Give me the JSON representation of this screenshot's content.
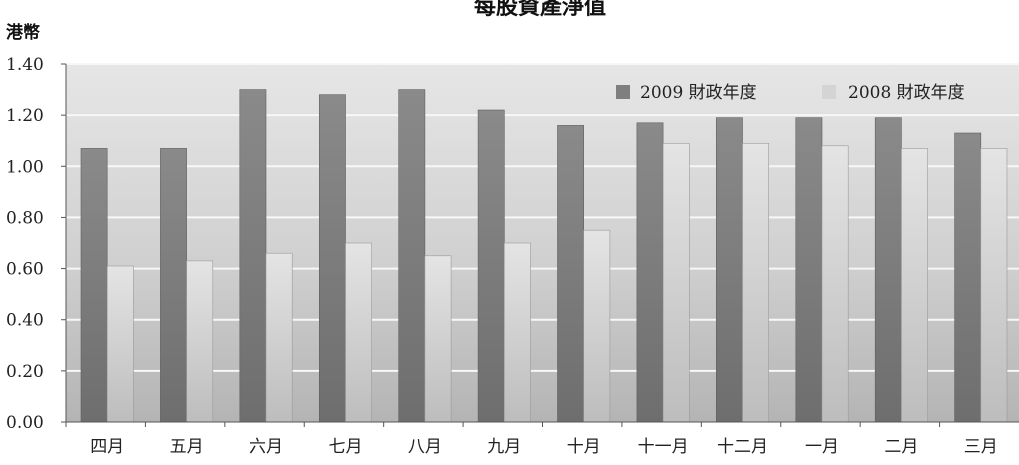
{
  "chart_data": {
    "type": "bar",
    "title": "每股資產淨值",
    "ylabel": "港幣",
    "xlabel": "",
    "categories": [
      "四月",
      "五月",
      "六月",
      "七月",
      "八月",
      "九月",
      "十月",
      "十一月",
      "十二月",
      "一月",
      "二月",
      "三月"
    ],
    "series": [
      {
        "name": "2009 財政年度",
        "color": "#7f7f7f",
        "values": [
          1.07,
          1.07,
          1.3,
          1.28,
          1.3,
          1.22,
          1.16,
          1.17,
          1.19,
          1.19,
          1.19,
          1.13
        ]
      },
      {
        "name": "2008 財政年度",
        "color": "#d4d4d4",
        "values": [
          0.61,
          0.63,
          0.66,
          0.7,
          0.65,
          0.7,
          0.75,
          1.09,
          1.09,
          1.08,
          1.07,
          1.07
        ]
      }
    ],
    "ylim": [
      0,
      1.4
    ],
    "yticks": [
      "0.00",
      "0.20",
      "0.40",
      "0.60",
      "0.80",
      "1.00",
      "1.20",
      "1.40"
    ],
    "grid": true,
    "legend_position": "top-right"
  }
}
